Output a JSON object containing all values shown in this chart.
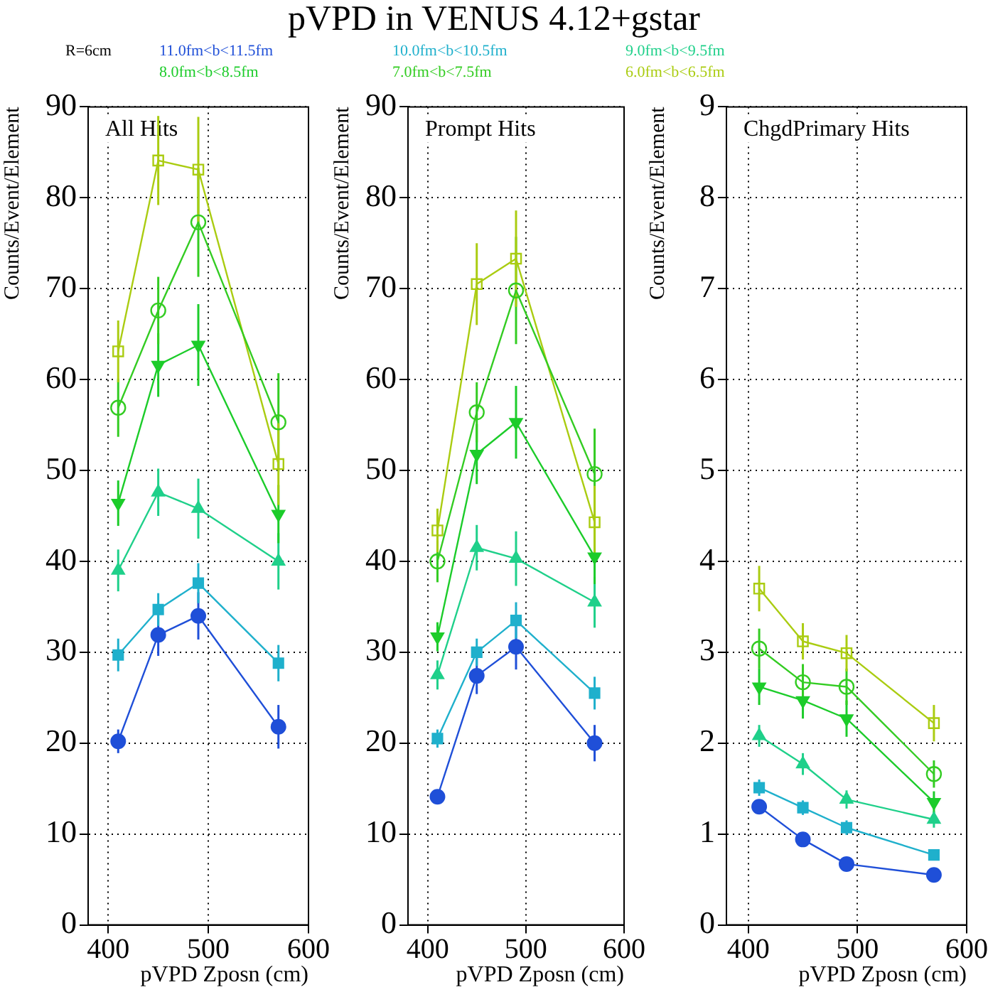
{
  "chart_data": [
    {
      "type": "line",
      "xlabel": "pVPD Zposn (cm)",
      "ylabel": "Counts/Event/Element",
      "annotations": [
        "All Hits",
        "R=6cm"
      ],
      "x": [
        410,
        450,
        490,
        570
      ],
      "xlim": [
        380,
        600
      ],
      "xticks": [
        400,
        500,
        600
      ],
      "ylim": [
        0,
        90
      ],
      "yticks": [
        0,
        10,
        20,
        30,
        40,
        50,
        60,
        70,
        80,
        90
      ],
      "grid": true,
      "legend": "top",
      "series": [
        {
          "name": "11.0fm<b<11.5fm",
          "color": "#1f4fd8",
          "marker": "circle",
          "values": [
            20.2,
            31.9,
            34.0,
            21.8
          ],
          "errors": [
            1.3,
            2.3,
            2.6,
            2.4
          ]
        },
        {
          "name": "10.0fm<b<10.5fm",
          "color": "#1fb0cc",
          "marker": "square",
          "values": [
            29.7,
            34.7,
            37.6,
            28.8
          ],
          "errors": [
            1.8,
            1.8,
            2.2,
            2.0
          ]
        },
        {
          "name": "9.0fm<b<9.5fm",
          "color": "#1fd08a",
          "marker": "triangle",
          "values": [
            39.0,
            47.6,
            45.8,
            40.0
          ],
          "errors": [
            2.3,
            2.6,
            3.3,
            3.1
          ]
        },
        {
          "name": "8.0fm<b<8.5fm",
          "color": "#1ccc2a",
          "marker": "triangle-down",
          "values": [
            46.4,
            61.6,
            63.8,
            45.2
          ],
          "errors": [
            2.5,
            3.5,
            4.5,
            3.2
          ]
        },
        {
          "name": "7.0fm<b<7.5fm",
          "color": "#33cc22",
          "marker": "circle-open",
          "values": [
            56.9,
            67.6,
            77.3,
            55.3
          ],
          "errors": [
            3.2,
            3.7,
            6.0,
            5.4
          ]
        },
        {
          "name": "6.0fm<b<6.5fm",
          "color": "#aacc11",
          "marker": "square-open",
          "values": [
            63.1,
            84.1,
            83.1,
            50.7
          ],
          "errors": [
            3.4,
            4.9,
            5.8,
            4.5
          ]
        }
      ]
    },
    {
      "type": "line",
      "title": "pVPD in VENUS 4.12+gstar",
      "xlabel": "pVPD Zposn (cm)",
      "ylabel": "Counts/Event/Element",
      "annotations": [
        "Prompt Hits"
      ],
      "x": [
        410,
        450,
        490,
        570
      ],
      "xlim": [
        380,
        600
      ],
      "xticks": [
        400,
        500,
        600
      ],
      "ylim": [
        0,
        90
      ],
      "yticks": [
        0,
        10,
        20,
        30,
        40,
        50,
        60,
        70,
        80,
        90
      ],
      "grid": true,
      "series": [
        {
          "color": "#1f4fd8",
          "marker": "circle",
          "values": [
            14.1,
            27.4,
            30.6,
            20.0
          ],
          "errors": [
            0.8,
            2.0,
            2.5,
            2.0
          ]
        },
        {
          "color": "#1fb0cc",
          "marker": "square",
          "values": [
            20.5,
            30.0,
            33.5,
            25.5
          ],
          "errors": [
            1.0,
            1.5,
            2.0,
            1.8
          ]
        },
        {
          "color": "#1fd08a",
          "marker": "triangle",
          "values": [
            27.5,
            41.5,
            40.3,
            35.5
          ],
          "errors": [
            1.6,
            2.5,
            3.0,
            2.8
          ]
        },
        {
          "color": "#1ccc2a",
          "marker": "triangle-down",
          "values": [
            31.7,
            51.8,
            55.3,
            40.5
          ],
          "errors": [
            1.6,
            3.3,
            4.0,
            3.0
          ]
        },
        {
          "color": "#33cc22",
          "marker": "circle-open",
          "values": [
            40.0,
            56.4,
            69.8,
            49.6
          ],
          "errors": [
            2.3,
            3.3,
            5.9,
            5.0
          ]
        },
        {
          "color": "#aacc11",
          "marker": "square-open",
          "values": [
            43.4,
            70.5,
            73.3,
            44.3
          ],
          "errors": [
            2.4,
            4.5,
            5.3,
            4.0
          ]
        }
      ]
    },
    {
      "type": "line",
      "xlabel": "pVPD Zposn (cm)",
      "ylabel": "Counts/Event/Element",
      "annotations": [
        "ChgdPrimary Hits"
      ],
      "x": [
        410,
        450,
        490,
        570
      ],
      "xlim": [
        380,
        600
      ],
      "xticks": [
        400,
        500,
        600
      ],
      "ylim": [
        0,
        9
      ],
      "yticks": [
        0,
        1,
        2,
        3,
        4,
        5,
        6,
        7,
        8,
        9
      ],
      "grid": true,
      "series": [
        {
          "color": "#1f4fd8",
          "marker": "circle",
          "values": [
            1.3,
            0.94,
            0.67,
            0.55
          ],
          "errors": [
            0.08,
            0.07,
            0.06,
            0.04
          ]
        },
        {
          "color": "#1fb0cc",
          "marker": "square",
          "values": [
            1.51,
            1.29,
            1.07,
            0.77
          ],
          "errors": [
            0.09,
            0.08,
            0.08,
            0.05
          ]
        },
        {
          "color": "#1fd08a",
          "marker": "triangle",
          "values": [
            2.08,
            1.77,
            1.38,
            1.16
          ],
          "errors": [
            0.12,
            0.12,
            0.1,
            0.09
          ]
        },
        {
          "color": "#1ccc2a",
          "marker": "triangle-down",
          "values": [
            2.62,
            2.47,
            2.27,
            1.35
          ],
          "errors": [
            0.2,
            0.2,
            0.2,
            0.12
          ]
        },
        {
          "color": "#33cc22",
          "marker": "circle-open",
          "values": [
            3.04,
            2.67,
            2.62,
            1.66
          ],
          "errors": [
            0.22,
            0.2,
            0.2,
            0.15
          ]
        },
        {
          "color": "#aacc11",
          "marker": "square-open",
          "values": [
            3.7,
            3.12,
            2.99,
            2.22
          ],
          "errors": [
            0.25,
            0.2,
            0.2,
            0.2
          ]
        }
      ]
    }
  ]
}
